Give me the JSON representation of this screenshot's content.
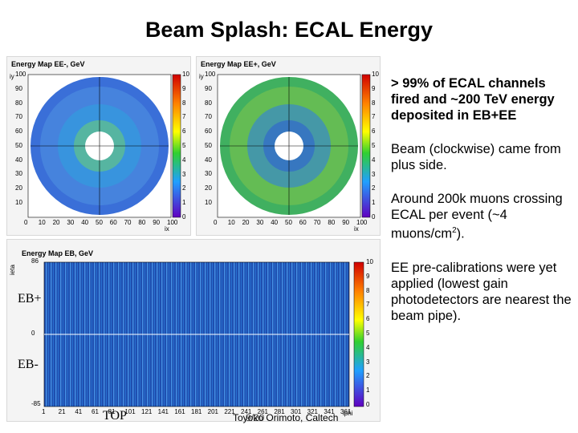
{
  "title": "Beam Splash: ECAL Energy",
  "plots": {
    "ee_minus": {
      "title": "Energy Map EE-, GeV",
      "y_axis_label": "iy",
      "x_axis_label": "ix",
      "y_ticks": [
        "100",
        "90",
        "80",
        "70",
        "60",
        "50",
        "40",
        "30",
        "20",
        "10"
      ],
      "x_ticks": [
        "0",
        "10",
        "20",
        "30",
        "40",
        "50",
        "60",
        "70",
        "80",
        "90",
        "100"
      ],
      "z_ticks": [
        "10",
        "9",
        "8",
        "7",
        "6",
        "5",
        "4",
        "3",
        "2",
        "1",
        "0"
      ]
    },
    "ee_plus": {
      "title": "Energy Map EE+, GeV",
      "y_axis_label": "iy",
      "x_axis_label": "ix",
      "y_ticks": [
        "100",
        "90",
        "80",
        "70",
        "60",
        "50",
        "40",
        "30",
        "20",
        "10"
      ],
      "x_ticks": [
        "0",
        "10",
        "20",
        "30",
        "40",
        "50",
        "60",
        "70",
        "80",
        "90",
        "100"
      ],
      "z_ticks": [
        "10",
        "9",
        "8",
        "7",
        "6",
        "5",
        "4",
        "3",
        "2",
        "1",
        "0"
      ]
    },
    "eb": {
      "title": "Energy Map EB, GeV",
      "y_axis_label": "ieta",
      "x_axis_label": "iphi",
      "y_ticks": [
        "86",
        "0",
        "-85"
      ],
      "x_ticks": [
        "1",
        "21",
        "41",
        "61",
        "81",
        "101",
        "121",
        "141",
        "161",
        "181",
        "201",
        "221",
        "241",
        "261",
        "281",
        "301",
        "321",
        "341",
        "361"
      ],
      "z_ticks": [
        "10",
        "9",
        "8",
        "7",
        "6",
        "5",
        "4",
        "3",
        "2",
        "1",
        "0"
      ]
    }
  },
  "bullets": [
    "> 99% of ECAL channels fired and ~200 TeV energy deposited in EB+EE",
    "Beam (clockwise) came from plus side.",
    "Around 200k muons crossing ECAL per event (~4 muons/cm",
    "EE pre-calibrations were yet applied (lowest gain photodetectors are nearest the beam pipe)."
  ],
  "bullet3_sup": "2",
  "bullet3_tail": ").",
  "labels": {
    "eb_plus": "EB+",
    "eb_minus": "EB-",
    "top": "TOP",
    "toyoko": "Toyoko Orimoto, Caltech",
    "page": "9/20"
  },
  "colors": {
    "panel_bg": "#f4f4f4",
    "ring_blue": "#3060d0",
    "barrel_blue": "#1f4fb0"
  }
}
